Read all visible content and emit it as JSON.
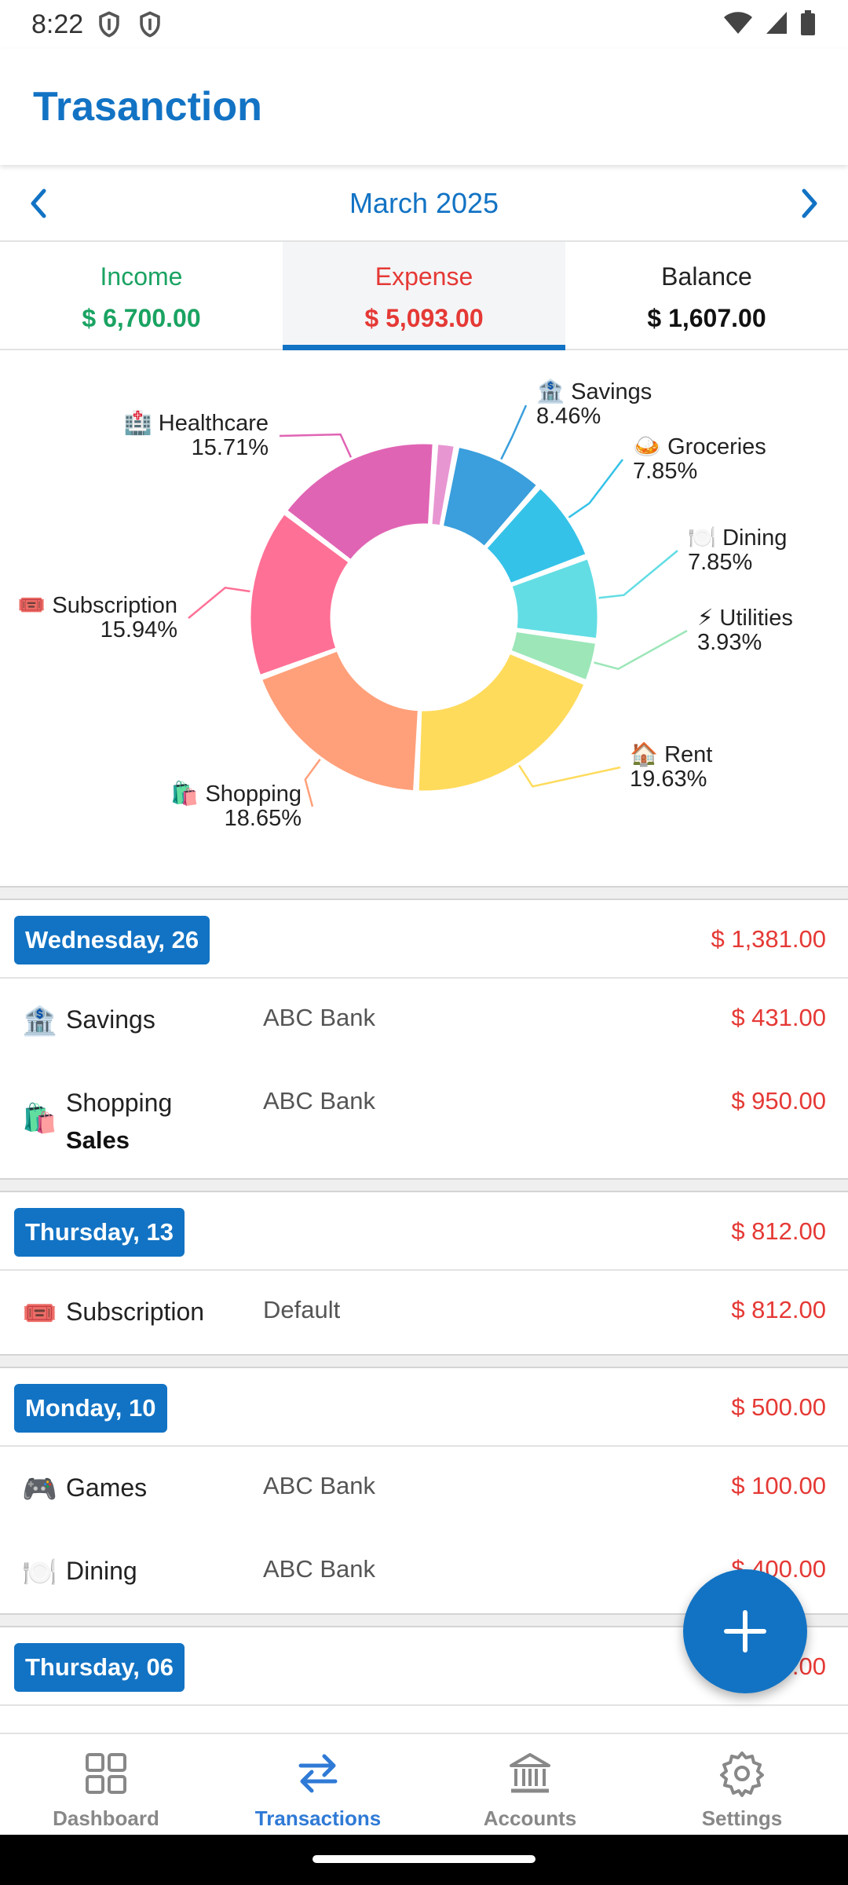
{
  "status_bar": {
    "time": "8:22"
  },
  "app": {
    "title": "Trasanction"
  },
  "month": {
    "label": "March 2025"
  },
  "summary": {
    "income": {
      "label": "Income",
      "value": "$ 6,700.00",
      "color": "#1aa362"
    },
    "expense": {
      "label": "Expense",
      "value": "$ 5,093.00",
      "color": "#e53935"
    },
    "balance": {
      "label": "Balance",
      "value": "$ 1,607.00",
      "color": "#222222"
    }
  },
  "chart_data": {
    "type": "pie",
    "categories": [
      "Savings",
      "Groceries",
      "Dining",
      "Utilities",
      "Rent",
      "Shopping",
      "Subscription",
      "Healthcare",
      "Games"
    ],
    "values": [
      8.46,
      7.85,
      7.85,
      3.93,
      19.63,
      18.65,
      15.94,
      15.71,
      1.96
    ],
    "labels": [
      "8.46%",
      "7.85%",
      "7.85%",
      "3.93%",
      "19.63%",
      "18.65%",
      "15.94%",
      "15.71%",
      ""
    ],
    "icons": [
      "🏦",
      "🍛",
      "🍽️",
      "⚡",
      "🏠",
      "🛍️",
      "🎟️",
      "🏥",
      ""
    ],
    "colors": [
      "#3a9fdc",
      "#35c2e8",
      "#62dde4",
      "#9ce6b8",
      "#ffdb5c",
      "#ffa07a",
      "#ff7096",
      "#e064b4",
      "#e896d2"
    ],
    "donut": true
  },
  "days": [
    {
      "label": "Wednesday, 26",
      "total": "$ 1,381.00",
      "items": [
        {
          "icon": "🏦",
          "category": "Savings",
          "note": "",
          "account": "ABC Bank",
          "amount": "$ 431.00"
        },
        {
          "icon": "🛍️",
          "category": "Shopping",
          "note": "Sales",
          "account": "ABC Bank",
          "amount": "$ 950.00"
        }
      ]
    },
    {
      "label": "Thursday, 13",
      "total": "$ 812.00",
      "items": [
        {
          "icon": "🎟️",
          "category": "Subscription",
          "note": "",
          "account": "Default",
          "amount": "$ 812.00"
        }
      ]
    },
    {
      "label": "Monday, 10",
      "total": "$ 500.00",
      "items": [
        {
          "icon": "🎮",
          "category": "Games",
          "note": "",
          "account": "ABC Bank",
          "amount": "$ 100.00"
        },
        {
          "icon": "🍽️",
          "category": "Dining",
          "note": "",
          "account": "ABC Bank",
          "amount": "$ 400.00"
        }
      ]
    },
    {
      "label": "Thursday, 06",
      "total": ".00",
      "items": []
    }
  ],
  "nav": [
    {
      "label": "Dashboard",
      "icon": "dashboard-icon"
    },
    {
      "label": "Transactions",
      "icon": "transactions-icon"
    },
    {
      "label": "Accounts",
      "icon": "bank-icon"
    },
    {
      "label": "Settings",
      "icon": "gear-icon"
    }
  ],
  "colors": {
    "primary": "#1273c4",
    "nav_active": "#2f7ad6",
    "expense_red": "#e53935"
  }
}
